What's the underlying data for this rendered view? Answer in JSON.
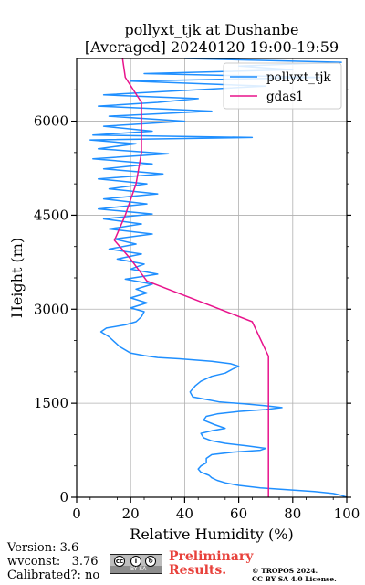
{
  "chart_data": {
    "type": "line",
    "title": "pollyxt_tjk at Dushanbe",
    "subtitle": "[Averaged] 20240120 19:00-19:59",
    "xlabel": "Relative Humidity (%)",
    "ylabel": "Height (m)",
    "xlim": [
      0,
      100
    ],
    "ylim": [
      0,
      7000
    ],
    "xticks": [
      0,
      20,
      40,
      60,
      80,
      100
    ],
    "yticks": [
      0,
      1500,
      3000,
      4500,
      6000
    ],
    "grid": true,
    "legend_position": "top-right",
    "series": [
      {
        "name": "pollyxt_tjk",
        "color": "#1f8fff",
        "points": [
          [
            100,
            0
          ],
          [
            98,
            30
          ],
          [
            95,
            60
          ],
          [
            88,
            90
          ],
          [
            78,
            120
          ],
          [
            68,
            150
          ],
          [
            60,
            190
          ],
          [
            55,
            230
          ],
          [
            52,
            270
          ],
          [
            50,
            310
          ],
          [
            49,
            350
          ],
          [
            46,
            400
          ],
          [
            45,
            450
          ],
          [
            46,
            500
          ],
          [
            48,
            550
          ],
          [
            48,
            620
          ],
          [
            50,
            680
          ],
          [
            58,
            720
          ],
          [
            68,
            750
          ],
          [
            70,
            780
          ],
          [
            63,
            820
          ],
          [
            55,
            860
          ],
          [
            50,
            900
          ],
          [
            47,
            950
          ],
          [
            46,
            1020
          ],
          [
            50,
            1060
          ],
          [
            55,
            1100
          ],
          [
            51,
            1160
          ],
          [
            47,
            1230
          ],
          [
            48,
            1290
          ],
          [
            52,
            1330
          ],
          [
            60,
            1370
          ],
          [
            70,
            1400
          ],
          [
            76,
            1430
          ],
          [
            70,
            1460
          ],
          [
            62,
            1490
          ],
          [
            53,
            1520
          ],
          [
            48,
            1560
          ],
          [
            43,
            1600
          ],
          [
            42,
            1680
          ],
          [
            44,
            1780
          ],
          [
            46,
            1850
          ],
          [
            50,
            1930
          ],
          [
            55,
            1980
          ],
          [
            58,
            2050
          ],
          [
            60,
            2090
          ],
          [
            57,
            2130
          ],
          [
            50,
            2170
          ],
          [
            38,
            2210
          ],
          [
            30,
            2230
          ],
          [
            25,
            2260
          ],
          [
            20,
            2300
          ],
          [
            16,
            2400
          ],
          [
            14,
            2480
          ],
          [
            12,
            2560
          ],
          [
            9,
            2640
          ],
          [
            11,
            2700
          ],
          [
            18,
            2750
          ],
          [
            22,
            2800
          ],
          [
            24,
            2880
          ],
          [
            25,
            2960
          ],
          [
            20,
            3020
          ],
          [
            26,
            3100
          ],
          [
            20,
            3180
          ],
          [
            26,
            3260
          ],
          [
            22,
            3320
          ],
          [
            28,
            3400
          ],
          [
            18,
            3480
          ],
          [
            30,
            3560
          ],
          [
            20,
            3640
          ],
          [
            25,
            3720
          ],
          [
            15,
            3800
          ],
          [
            24,
            3880
          ],
          [
            12,
            3960
          ],
          [
            22,
            4040
          ],
          [
            14,
            4120
          ],
          [
            28,
            4200
          ],
          [
            12,
            4280
          ],
          [
            24,
            4360
          ],
          [
            10,
            4440
          ],
          [
            28,
            4520
          ],
          [
            8,
            4600
          ],
          [
            26,
            4680
          ],
          [
            10,
            4760
          ],
          [
            30,
            4840
          ],
          [
            12,
            4920
          ],
          [
            26,
            5000
          ],
          [
            8,
            5080
          ],
          [
            32,
            5160
          ],
          [
            10,
            5240
          ],
          [
            28,
            5320
          ],
          [
            6,
            5400
          ],
          [
            34,
            5480
          ],
          [
            8,
            5560
          ],
          [
            22,
            5640
          ],
          [
            5,
            5700
          ],
          [
            65,
            5740
          ],
          [
            6,
            5780
          ],
          [
            28,
            5840
          ],
          [
            10,
            5920
          ],
          [
            40,
            6000
          ],
          [
            12,
            6080
          ],
          [
            50,
            6160
          ],
          [
            8,
            6240
          ],
          [
            30,
            6300
          ],
          [
            45,
            6360
          ],
          [
            10,
            6420
          ],
          [
            35,
            6480
          ],
          [
            70,
            6560
          ],
          [
            20,
            6640
          ],
          [
            90,
            6700
          ],
          [
            25,
            6760
          ],
          [
            80,
            6820
          ],
          [
            60,
            6880
          ],
          [
            98,
            6940
          ],
          [
            40,
            7000
          ]
        ]
      },
      {
        "name": "gdas1",
        "color": "#e8138c",
        "points": [
          [
            71,
            0
          ],
          [
            71,
            600
          ],
          [
            71,
            1100
          ],
          [
            71,
            1700
          ],
          [
            71,
            2250
          ],
          [
            65,
            2800
          ],
          [
            26,
            3450
          ],
          [
            20,
            3800
          ],
          [
            14,
            4100
          ],
          [
            18,
            4500
          ],
          [
            22,
            5000
          ],
          [
            24,
            5500
          ],
          [
            24,
            6000
          ],
          [
            24,
            6300
          ],
          [
            18,
            6700
          ],
          [
            17,
            7000
          ]
        ]
      }
    ]
  },
  "footer": {
    "version": "Version: 3.6",
    "wvconst": "wvconst:   3.76",
    "calibrated": "Calibrated?: no",
    "cc_label": "BY  SA",
    "preliminary_line1": "Preliminary",
    "preliminary_line2": "Results.",
    "copyright_line1": "© TROPOS 2024.",
    "copyright_line2": "CC BY SA 4.0 License."
  }
}
